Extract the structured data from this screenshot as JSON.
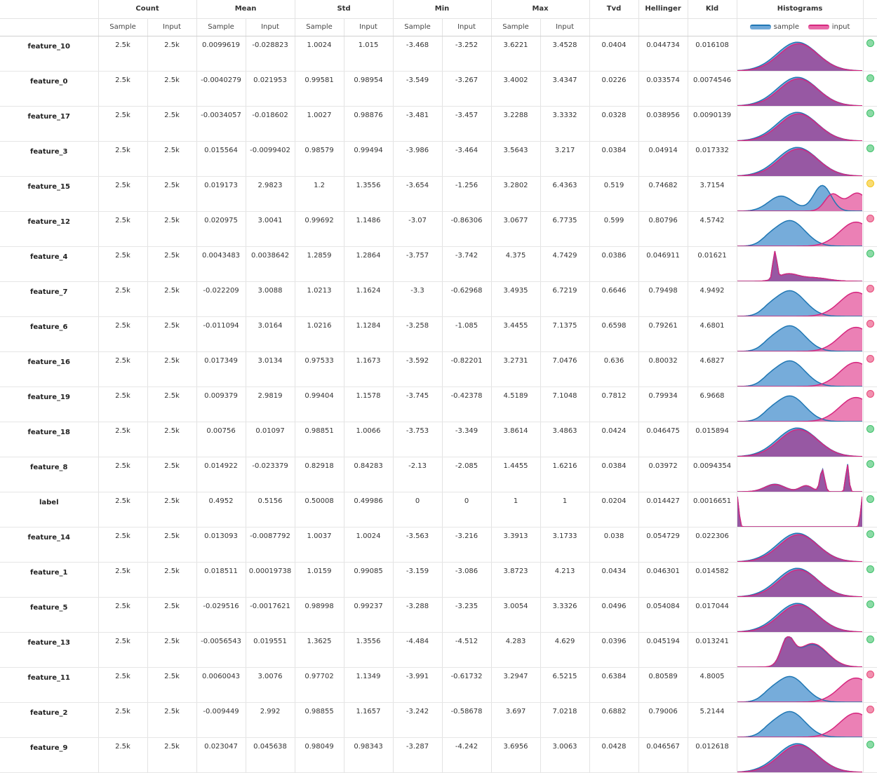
{
  "headers": {
    "count": "Count",
    "mean": "Mean",
    "std": "Std",
    "min": "Min",
    "max": "Max",
    "tvd": "Tvd",
    "hellinger": "Hellinger",
    "kld": "Kld",
    "histograms": "Histograms",
    "sample": "Sample",
    "input": "Input"
  },
  "legend": {
    "sample": "sample",
    "input": "input"
  },
  "colors": {
    "sample_fill": "#6fa8d8",
    "sample_line": "#1f77b4",
    "input_fill": "#e86aa8",
    "input_line": "#d6277f",
    "overlap_fill": "#9b4f9c",
    "ok": "#3fc26a",
    "warn": "#f5c518",
    "bad": "#e8477a"
  },
  "rows": [
    {
      "name": "feature_10",
      "cs": "2.5k",
      "ci": "2.5k",
      "ms": "0.0099619",
      "mi": "-0.028823",
      "ss": "1.0024",
      "si": "1.015",
      "mns": "-3.468",
      "mni": "-3.252",
      "mxs": "3.6221",
      "mxi": "3.4528",
      "tvd": "0.0404",
      "hel": "0.044734",
      "kld": "0.016108",
      "status": "ok"
    },
    {
      "name": "feature_0",
      "cs": "2.5k",
      "ci": "2.5k",
      "ms": "-0.0040279",
      "mi": "0.021953",
      "ss": "0.99581",
      "si": "0.98954",
      "mns": "-3.549",
      "mni": "-3.267",
      "mxs": "3.4002",
      "mxi": "3.4347",
      "tvd": "0.0226",
      "hel": "0.033574",
      "kld": "0.0074546",
      "status": "ok"
    },
    {
      "name": "feature_17",
      "cs": "2.5k",
      "ci": "2.5k",
      "ms": "-0.0034057",
      "mi": "-0.018602",
      "ss": "1.0027",
      "si": "0.98876",
      "mns": "-3.481",
      "mni": "-3.457",
      "mxs": "3.2288",
      "mxi": "3.3332",
      "tvd": "0.0328",
      "hel": "0.038956",
      "kld": "0.0090139",
      "status": "ok"
    },
    {
      "name": "feature_3",
      "cs": "2.5k",
      "ci": "2.5k",
      "ms": "0.015564",
      "mi": "-0.0099402",
      "ss": "0.98579",
      "si": "0.99494",
      "mns": "-3.986",
      "mni": "-3.464",
      "mxs": "3.5643",
      "mxi": "3.217",
      "tvd": "0.0384",
      "hel": "0.04914",
      "kld": "0.017332",
      "status": "ok"
    },
    {
      "name": "feature_15",
      "cs": "2.5k",
      "ci": "2.5k",
      "ms": "0.019173",
      "mi": "2.9823",
      "ss": "1.2",
      "si": "1.3556",
      "mns": "-3.654",
      "mni": "-1.256",
      "mxs": "3.2802",
      "mxi": "6.4363",
      "tvd": "0.519",
      "hel": "0.74682",
      "kld": "3.7154",
      "status": "warn"
    },
    {
      "name": "feature_12",
      "cs": "2.5k",
      "ci": "2.5k",
      "ms": "0.020975",
      "mi": "3.0041",
      "ss": "0.99692",
      "si": "1.1486",
      "mns": "-3.07",
      "mni": "-0.86306",
      "mxs": "3.0677",
      "mxi": "6.7735",
      "tvd": "0.599",
      "hel": "0.80796",
      "kld": "4.5742",
      "status": "bad"
    },
    {
      "name": "feature_4",
      "cs": "2.5k",
      "ci": "2.5k",
      "ms": "0.0043483",
      "mi": "0.0038642",
      "ss": "1.2859",
      "si": "1.2864",
      "mns": "-3.757",
      "mni": "-3.742",
      "mxs": "4.375",
      "mxi": "4.7429",
      "tvd": "0.0386",
      "hel": "0.046911",
      "kld": "0.01621",
      "status": "ok"
    },
    {
      "name": "feature_7",
      "cs": "2.5k",
      "ci": "2.5k",
      "ms": "-0.022209",
      "mi": "3.0088",
      "ss": "1.0213",
      "si": "1.1624",
      "mns": "-3.3",
      "mni": "-0.62968",
      "mxs": "3.4935",
      "mxi": "6.7219",
      "tvd": "0.6646",
      "hel": "0.79498",
      "kld": "4.9492",
      "status": "bad"
    },
    {
      "name": "feature_6",
      "cs": "2.5k",
      "ci": "2.5k",
      "ms": "-0.011094",
      "mi": "3.0164",
      "ss": "1.0216",
      "si": "1.1284",
      "mns": "-3.258",
      "mni": "-1.085",
      "mxs": "3.4455",
      "mxi": "7.1375",
      "tvd": "0.6598",
      "hel": "0.79261",
      "kld": "4.6801",
      "status": "bad"
    },
    {
      "name": "feature_16",
      "cs": "2.5k",
      "ci": "2.5k",
      "ms": "0.017349",
      "mi": "3.0134",
      "ss": "0.97533",
      "si": "1.1673",
      "mns": "-3.592",
      "mni": "-0.82201",
      "mxs": "3.2731",
      "mxi": "7.0476",
      "tvd": "0.636",
      "hel": "0.80032",
      "kld": "4.6827",
      "status": "bad"
    },
    {
      "name": "feature_19",
      "cs": "2.5k",
      "ci": "2.5k",
      "ms": "0.009379",
      "mi": "2.9819",
      "ss": "0.99404",
      "si": "1.1578",
      "mns": "-3.745",
      "mni": "-0.42378",
      "mxs": "4.5189",
      "mxi": "7.1048",
      "tvd": "0.7812",
      "hel": "0.79934",
      "kld": "6.9668",
      "status": "bad"
    },
    {
      "name": "feature_18",
      "cs": "2.5k",
      "ci": "2.5k",
      "ms": "0.00756",
      "mi": "0.01097",
      "ss": "0.98851",
      "si": "1.0066",
      "mns": "-3.753",
      "mni": "-3.349",
      "mxs": "3.8614",
      "mxi": "3.4863",
      "tvd": "0.0424",
      "hel": "0.046475",
      "kld": "0.015894",
      "status": "ok"
    },
    {
      "name": "feature_8",
      "cs": "2.5k",
      "ci": "2.5k",
      "ms": "0.014922",
      "mi": "-0.023379",
      "ss": "0.82918",
      "si": "0.84283",
      "mns": "-2.13",
      "mni": "-2.085",
      "mxs": "1.4455",
      "mxi": "1.6216",
      "tvd": "0.0384",
      "hel": "0.03972",
      "kld": "0.0094354",
      "status": "ok"
    },
    {
      "name": "label",
      "cs": "2.5k",
      "ci": "2.5k",
      "ms": "0.4952",
      "mi": "0.5156",
      "ss": "0.50008",
      "si": "0.49986",
      "mns": "0",
      "mni": "0",
      "mxs": "1",
      "mxi": "1",
      "tvd": "0.0204",
      "hel": "0.014427",
      "kld": "0.0016651",
      "status": "ok"
    },
    {
      "name": "feature_14",
      "cs": "2.5k",
      "ci": "2.5k",
      "ms": "0.013093",
      "mi": "-0.0087792",
      "ss": "1.0037",
      "si": "1.0024",
      "mns": "-3.563",
      "mni": "-3.216",
      "mxs": "3.3913",
      "mxi": "3.1733",
      "tvd": "0.038",
      "hel": "0.054729",
      "kld": "0.022306",
      "status": "ok"
    },
    {
      "name": "feature_1",
      "cs": "2.5k",
      "ci": "2.5k",
      "ms": "0.018511",
      "mi": "0.00019738",
      "ss": "1.0159",
      "si": "0.99085",
      "mns": "-3.159",
      "mni": "-3.086",
      "mxs": "3.8723",
      "mxi": "4.213",
      "tvd": "0.0434",
      "hel": "0.046301",
      "kld": "0.014582",
      "status": "ok"
    },
    {
      "name": "feature_5",
      "cs": "2.5k",
      "ci": "2.5k",
      "ms": "-0.029516",
      "mi": "-0.0017621",
      "ss": "0.98998",
      "si": "0.99237",
      "mns": "-3.288",
      "mni": "-3.235",
      "mxs": "3.0054",
      "mxi": "3.3326",
      "tvd": "0.0496",
      "hel": "0.054084",
      "kld": "0.017044",
      "status": "ok"
    },
    {
      "name": "feature_13",
      "cs": "2.5k",
      "ci": "2.5k",
      "ms": "-0.0056543",
      "mi": "0.019551",
      "ss": "1.3625",
      "si": "1.3556",
      "mns": "-4.484",
      "mni": "-4.512",
      "mxs": "4.283",
      "mxi": "4.629",
      "tvd": "0.0396",
      "hel": "0.045194",
      "kld": "0.013241",
      "status": "ok"
    },
    {
      "name": "feature_11",
      "cs": "2.5k",
      "ci": "2.5k",
      "ms": "0.0060043",
      "mi": "3.0076",
      "ss": "0.97702",
      "si": "1.1349",
      "mns": "-3.991",
      "mni": "-0.61732",
      "mxs": "3.2947",
      "mxi": "6.5215",
      "tvd": "0.6384",
      "hel": "0.80589",
      "kld": "4.8005",
      "status": "bad"
    },
    {
      "name": "feature_2",
      "cs": "2.5k",
      "ci": "2.5k",
      "ms": "-0.009449",
      "mi": "2.992",
      "ss": "0.98855",
      "si": "1.1657",
      "mns": "-3.242",
      "mni": "-0.58678",
      "mxs": "3.697",
      "mxi": "7.0218",
      "tvd": "0.6882",
      "hel": "0.79006",
      "kld": "5.2144",
      "status": "bad"
    },
    {
      "name": "feature_9",
      "cs": "2.5k",
      "ci": "2.5k",
      "ms": "0.023047",
      "mi": "0.045638",
      "ss": "0.98049",
      "si": "0.98343",
      "mns": "-3.287",
      "mni": "-4.242",
      "mxs": "3.6956",
      "mxi": "3.0063",
      "tvd": "0.0428",
      "hel": "0.046567",
      "kld": "0.012618",
      "status": "ok"
    }
  ]
}
